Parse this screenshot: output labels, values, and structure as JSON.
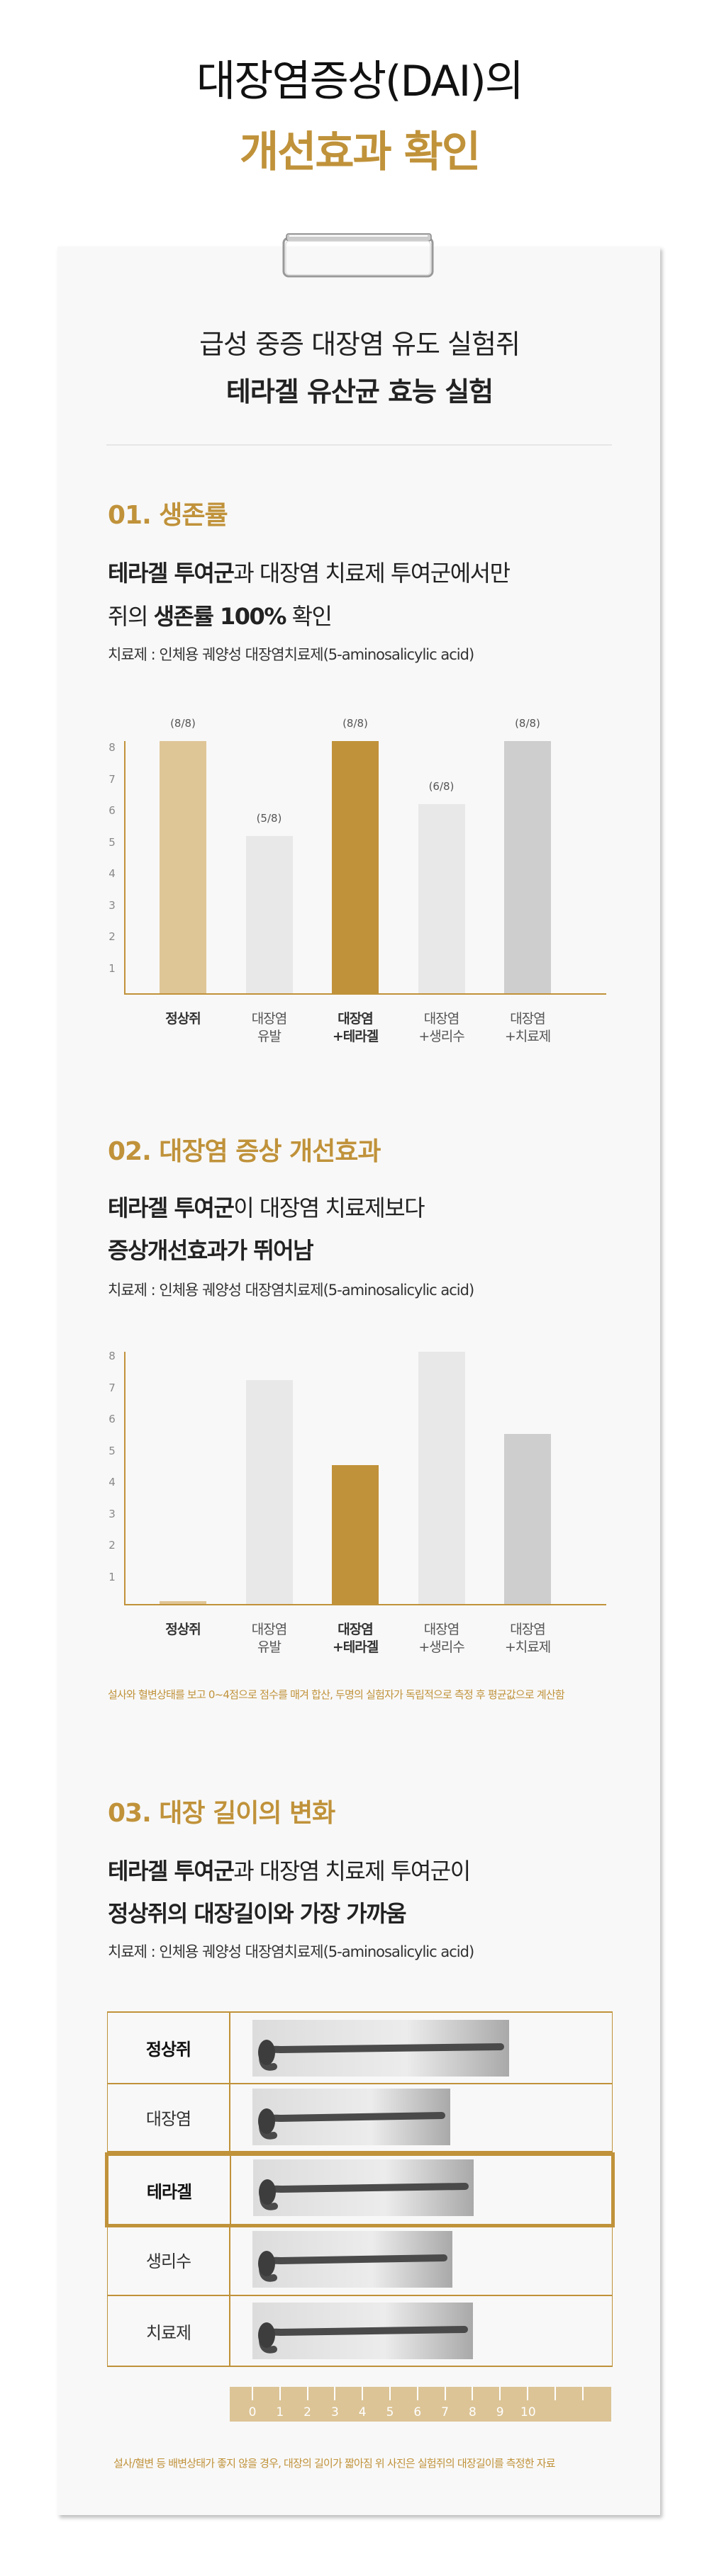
{
  "header": {
    "title_line1": "대장염증상(DAI)의",
    "title_line2": "개선효과 확인"
  },
  "card": {
    "subtitle1": "급성 중증 대장염 유도 실험쥐",
    "subtitle2": "테라겔 유산균 효능 실험"
  },
  "section1": {
    "title": "01. 생존률",
    "line1": {
      "bold": "테라겔 투여군",
      "normal": "과 대장염 치료제 투여군에서만"
    },
    "line2": {
      "pre": "쥐의 ",
      "bold": "생존률 100%",
      "post": " 확인"
    },
    "note": "치료제 : 인체용 궤양성 대장염치료제(5-aminosalicylic acid)"
  },
  "section2": {
    "title": "02. 대장염 증상 개선효과",
    "line1": {
      "bold": "테라겔 투여군",
      "normal": "이 대장염 치료제보다"
    },
    "line2": {
      "bold": "증상개선효과가 뛰어남"
    },
    "note": "치료제 : 인체용 궤양성 대장염치료제(5-aminosalicylic acid)",
    "footnote": "설사와 혈변상태를 보고 0~4점으로 점수를 매겨 합산, 두명의 실험자가 독립적으로 측정 후 평균값으로 계산함"
  },
  "section3": {
    "title": "03. 대장 길이의 변화",
    "line1": {
      "bold": "테라겔 투여군",
      "normal": "과 대장염 치료제 투여군이"
    },
    "line2": {
      "bold": "정상쥐의 대장길이와 가장 가까움"
    },
    "note": "치료제 : 인체용 궤양성 대장염치료제(5-aminosalicylic acid)",
    "table_rows": [
      {
        "label": "정상쥐",
        "bold": true,
        "length": 1.0
      },
      {
        "label": "대장염",
        "bold": false,
        "length": 0.77
      },
      {
        "label": "테라겔",
        "bold": true,
        "length": 0.86
      },
      {
        "label": "생리수",
        "bold": false,
        "length": 0.78
      },
      {
        "label": "치료제",
        "bold": false,
        "length": 0.86
      }
    ],
    "ruler_labels": [
      "0",
      "1",
      "2",
      "3",
      "4",
      "5",
      "6",
      "7",
      "8",
      "9",
      "10"
    ],
    "footnote": "설사/혈변 등 배변상태가 좋지 않을 경우, 대장의 길이가 짧아짐 위 사진은 실험쥐의 대장길이를 측정한 자료"
  },
  "colors": {
    "gold": "#c0923a",
    "light_gold": "#dfc697",
    "light_gray": "#e8e8e8",
    "gray": "#cecece"
  },
  "chart_data": [
    {
      "type": "bar",
      "title": "01. 생존률",
      "categories": [
        [
          "정상쥐"
        ],
        [
          "대장염",
          "유발"
        ],
        [
          "대장염",
          "+테라겔"
        ],
        [
          "대장염",
          "+생리수"
        ],
        [
          "대장염",
          "+치료제"
        ]
      ],
      "bold_categories": [
        true,
        false,
        true,
        false,
        false
      ],
      "values": [
        8,
        5,
        8,
        6,
        8
      ],
      "value_labels": [
        "(8/8)",
        "(5/8)",
        "(8/8)",
        "(6/8)",
        "(8/8)"
      ],
      "bar_colors": [
        "#dfc697",
        "#e8e8e8",
        "#c0923a",
        "#e8e8e8",
        "#cecece"
      ],
      "yticks": [
        1,
        2,
        3,
        4,
        5,
        6,
        7,
        8
      ],
      "ylim": [
        0,
        8
      ],
      "xlabel": "",
      "ylabel": "",
      "grid": false
    },
    {
      "type": "bar",
      "title": "02. 대장염 증상 개선효과",
      "categories": [
        [
          "정상쥐"
        ],
        [
          "대장염",
          "유발"
        ],
        [
          "대장염",
          "+테라겔"
        ],
        [
          "대장염",
          "+생리수"
        ],
        [
          "대장염",
          "+치료제"
        ]
      ],
      "bold_categories": [
        true,
        false,
        true,
        false,
        false
      ],
      "values": [
        0.1,
        7.1,
        4.4,
        8.0,
        5.4
      ],
      "value_labels": [],
      "bar_colors": [
        "#dfc697",
        "#e8e8e8",
        "#c0923a",
        "#e8e8e8",
        "#cecece"
      ],
      "yticks": [
        1,
        2,
        3,
        4,
        5,
        6,
        7,
        8
      ],
      "ylim": [
        0,
        8
      ],
      "xlabel": "",
      "ylabel": "",
      "grid": false
    }
  ]
}
